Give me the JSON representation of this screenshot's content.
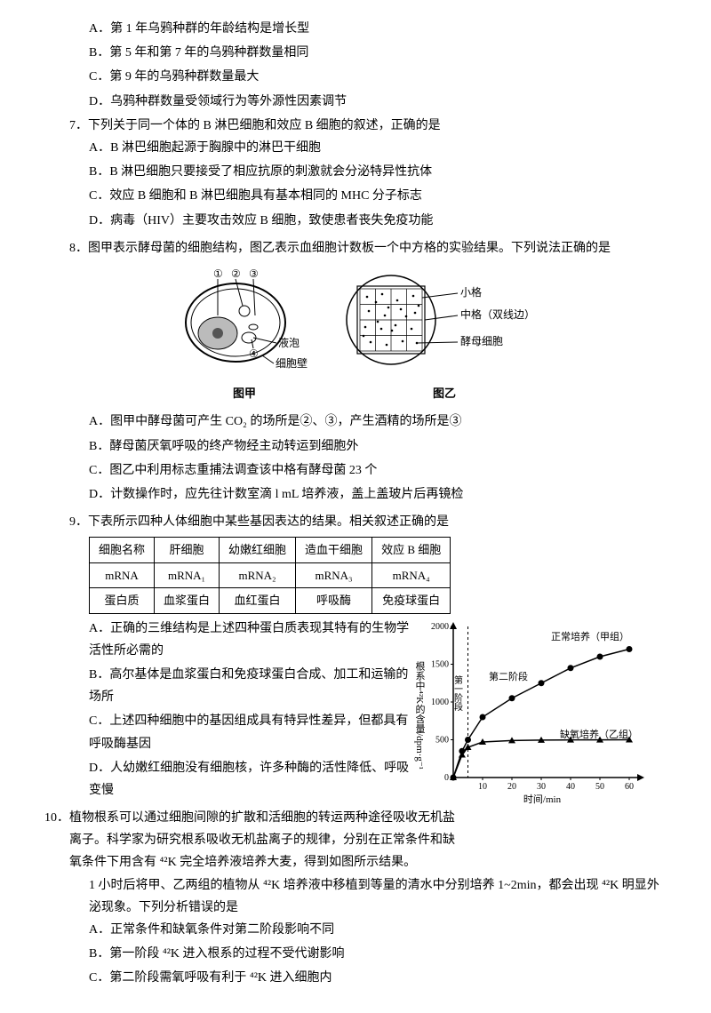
{
  "q6": {
    "options": {
      "A": "A．第 1 年乌鸦种群的年龄结构是增长型",
      "B": "B．第 5 年和第 7 年的乌鸦种群数量相同",
      "C": "C．第 9 年的乌鸦种群数量最大",
      "D": "D．乌鸦种群数量受领域行为等外源性因素调节"
    }
  },
  "q7": {
    "stem": "7．下列关于同一个体的 B 淋巴细胞和效应 B 细胞的叙述，正确的是",
    "options": {
      "A": "A．B 淋巴细胞起源于胸腺中的淋巴干细胞",
      "B": "B．B 淋巴细胞只要接受了相应抗原的刺激就会分泌特异性抗体",
      "C": "C．效应 B 细胞和 B 淋巴细胞具有基本相同的 MHC 分子标志",
      "D": "D．病毒（HIV）主要攻击效应 B 细胞，致使患者丧失免疫功能"
    }
  },
  "q8": {
    "stem": "8．图甲表示酵母菌的细胞结构，图乙表示血细胞计数板一个中方格的实验结果。下列说法正确的是",
    "figure": {
      "jia_caption": "图甲",
      "yi_caption": "图乙",
      "labels": {
        "n1": "①",
        "n2": "②",
        "n3": "③",
        "n4": "④",
        "vacuole": "液泡",
        "cellwall": "细胞壁",
        "small": "小格",
        "medium": "中格（双线边）",
        "yeast": "酵母细胞"
      }
    },
    "options": {
      "A": "A．图甲中酵母菌可产生 CO₂ 的场所是②、③，产生酒精的场所是③",
      "B": "B．酵母菌厌氧呼吸的终产物经主动转运到细胞外",
      "C": "C．图乙中利用标志重捕法调查该中格有酵母菌 23 个",
      "D": "D．计数操作时，应先往计数室滴 l mL 培养液，盖上盖玻片后再镜检"
    }
  },
  "q9": {
    "stem": "9．下表所示四种人体细胞中某些基因表达的结果。相关叙述正确的是",
    "table": {
      "headers": [
        "细胞名称",
        "肝细胞",
        "幼嫩红细胞",
        "造血干细胞",
        "效应 B 细胞"
      ],
      "row1": [
        "mRNA",
        "mRNA₁",
        "mRNA₂",
        "mRNA₃",
        "mRNA₄"
      ],
      "row2": [
        "蛋白质",
        "血浆蛋白",
        "血红蛋白",
        "呼吸酶",
        "免疫球蛋白"
      ]
    },
    "options": {
      "A": "A．正确的三维结构是上述四种蛋白质表现其特有的生物学活性所必需的",
      "B": "B．高尔基体是血浆蛋白和免疫球蛋白合成、加工和运输的场所",
      "C": "C．上述四种细胞中的基因组成具有特异性差异，但都具有呼吸酶基因",
      "D": "D．人幼嫩红细胞没有细胞核，许多种酶的活性降低、呼吸变慢"
    }
  },
  "q10": {
    "stem": "10．植物根系可以通过细胞间隙的扩散和活细胞的转运两种途径吸收无机盐离子。科学家为研究根系吸收无机盐离子的规律，分别在正常条件和缺氧条件下用含有 ⁴²K 完全培养液培养大麦，得到如图所示结果。",
    "stem2": "1 小时后将甲、乙两组的植物从 ⁴²K 培养液中移植到等量的清水中分别培养 1~2min，都会出现 ⁴²K 明显外泌现象。下列分析错误的是",
    "options": {
      "A": "A．正常条件和缺氧条件对第二阶段影响不同",
      "B": "B．第一阶段 ⁴²K 进入根系的过程不受代谢影响",
      "C": "C．第二阶段需氧呼吸有利于 ⁴²K 进入细胞内"
    },
    "chart": {
      "ylabel": "根系中⁴²K的含量/dpm·g⁻¹",
      "xlabel": "时间/min",
      "ymax": 2000,
      "ystep": 500,
      "xmax": 60,
      "xstep": 10,
      "series1_label": "正常培养（甲组）",
      "series2_label": "缺氧培养（乙组）",
      "phase1": "第一阶段",
      "phase2": "第二阶段",
      "series1_x": [
        0,
        3,
        5,
        10,
        20,
        30,
        40,
        50,
        60
      ],
      "series1_y": [
        0,
        350,
        500,
        800,
        1050,
        1250,
        1450,
        1600,
        1700
      ],
      "series2_x": [
        0,
        3,
        5,
        10,
        20,
        30,
        40,
        50,
        60
      ],
      "series2_y": [
        0,
        300,
        400,
        470,
        490,
        495,
        498,
        499,
        500
      ]
    }
  }
}
